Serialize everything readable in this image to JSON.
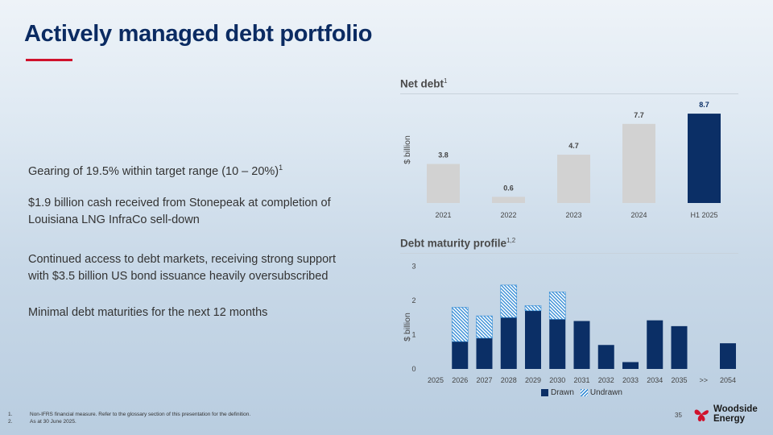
{
  "title": "Actively managed debt portfolio",
  "bullets": [
    {
      "text": "Gearing of 19.5% within target range (10 – 20%)",
      "sup": "1"
    },
    {
      "text": "$1.9 billion cash received from Stonepeak at completion of Louisiana LNG InfraCo sell-down",
      "sup": ""
    },
    {
      "text": "Continued access to debt markets, receiving strong support with $3.5 billion US bond issuance heavily oversubscribed",
      "sup": ""
    },
    {
      "text": "Minimal debt maturities for the next 12 months",
      "sup": ""
    }
  ],
  "net_debt_header": {
    "title": "Net debt",
    "sup": "1"
  },
  "maturity_header": {
    "title": "Debt maturity profile",
    "sup": "1,2"
  },
  "legend": {
    "drawn": "Drawn",
    "undrawn": "Undrawn"
  },
  "colors": {
    "navy": "#0b2f66",
    "grey": "#d2d2d2",
    "hatch": "#3a8fd6",
    "accent_red": "#d0122c"
  },
  "chart_data": [
    {
      "type": "bar",
      "title": "Net debt",
      "ylabel": "$ billion",
      "xlabel": "",
      "categories": [
        "2021",
        "2022",
        "2023",
        "2024",
        "H1 2025"
      ],
      "values": [
        3.8,
        0.6,
        4.7,
        7.7,
        8.7
      ],
      "labels": [
        "3.8",
        "0.6",
        "4.7",
        "7.7",
        "8.7"
      ],
      "highlight_index": 4,
      "ylim": [
        0,
        9.5
      ],
      "grid": false
    },
    {
      "type": "bar",
      "stacked": true,
      "title": "Debt maturity profile",
      "ylabel": "$ billion",
      "xlabel": "",
      "categories": [
        "2025",
        "2026",
        "2027",
        "2028",
        "2029",
        "2030",
        "2031",
        "2032",
        "2033",
        "2034",
        "2035",
        ">>",
        "2054"
      ],
      "series": [
        {
          "name": "Drawn",
          "values": [
            0,
            0.8,
            0.9,
            1.5,
            1.7,
            1.45,
            1.4,
            0.7,
            0.2,
            1.42,
            1.25,
            0,
            0.75
          ]
        },
        {
          "name": "Undrawn",
          "values": [
            0,
            1.0,
            0.65,
            0.95,
            0.15,
            0.8,
            0,
            0,
            0,
            0,
            0,
            0,
            0
          ]
        }
      ],
      "yticks": [
        0,
        1,
        2,
        3
      ],
      "ylim": [
        0,
        3
      ],
      "grid": false,
      "legend": "bottom"
    }
  ],
  "footnotes": [
    {
      "num": "1.",
      "text": "Non-IFRS financial measure. Refer to the glossary section of this presentation for the definition."
    },
    {
      "num": "2.",
      "text": "As at 30 June 2025."
    }
  ],
  "page_number": "35",
  "logo": {
    "line1": "Woodside",
    "line2": "Energy"
  }
}
